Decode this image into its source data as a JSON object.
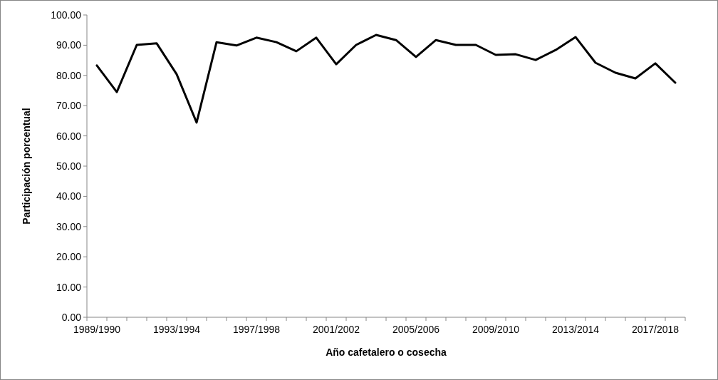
{
  "chart_data": {
    "type": "line",
    "xlabel": "Año cafetalero o cosecha",
    "ylabel": "Participación porcentual",
    "categories": [
      "1989/1990",
      null,
      null,
      null,
      "1993/1994",
      null,
      null,
      null,
      "1997/1998",
      null,
      null,
      null,
      "2001/2002",
      null,
      null,
      null,
      "2005/2006",
      null,
      null,
      null,
      "2009/2010",
      null,
      null,
      null,
      "2013/2014",
      null,
      null,
      null,
      "2017/2018",
      null
    ],
    "series": [
      {
        "color": "#000000",
        "values": [
          83.3,
          74.5,
          90.1,
          90.6,
          80.4,
          64.4,
          91.0,
          89.9,
          92.5,
          91.0,
          88.0,
          92.5,
          83.7,
          90.1,
          93.4,
          91.7,
          86.1,
          91.7,
          90.1,
          90.1,
          86.8,
          87.0,
          85.1,
          88.4,
          92.7,
          84.2,
          80.9,
          79.0,
          84.0,
          77.6
        ]
      }
    ],
    "ylim": [
      0,
      100
    ],
    "yticks": [
      {
        "value": 0,
        "label": "0.00"
      },
      {
        "value": 10,
        "label": "10.00"
      },
      {
        "value": 20,
        "label": "20.00"
      },
      {
        "value": 30,
        "label": "30.00"
      },
      {
        "value": 40,
        "label": "40.00"
      },
      {
        "value": 50,
        "label": "50.00"
      },
      {
        "value": 60,
        "label": "60.00"
      },
      {
        "value": 70,
        "label": "70.00"
      },
      {
        "value": 80,
        "label": "80.00"
      },
      {
        "value": 90,
        "label": "90.00"
      },
      {
        "value": 100,
        "label": "100.00"
      }
    ],
    "grid": false,
    "marker": "none",
    "line_style": "solid"
  }
}
